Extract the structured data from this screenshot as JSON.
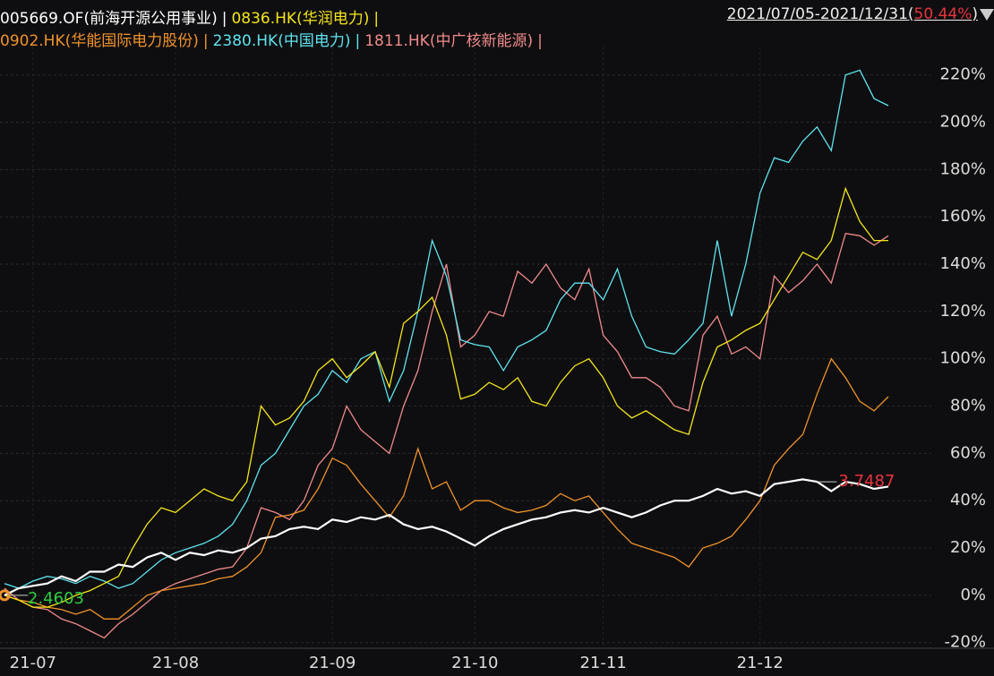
{
  "chart_data": {
    "type": "line",
    "separator": "|",
    "date_range": "2021/07/05-2021/12/31",
    "open_paren": "(",
    "change": "50.44%",
    "close_paren": ")",
    "annotations": [
      {
        "text": "3.7487",
        "color": "#e8343e"
      },
      {
        "text": "2.4603",
        "color": "#2ecc40"
      }
    ],
    "categories": [
      null,
      null,
      "21-07",
      null,
      null,
      null,
      null,
      null,
      null,
      null,
      null,
      null,
      "21-08",
      null,
      null,
      null,
      null,
      null,
      null,
      null,
      null,
      null,
      null,
      "21-09",
      null,
      null,
      null,
      null,
      null,
      null,
      null,
      null,
      null,
      "21-10",
      null,
      null,
      null,
      null,
      null,
      null,
      null,
      null,
      "21-11",
      null,
      null,
      null,
      null,
      null,
      null,
      null,
      null,
      null,
      null,
      "21-12",
      null,
      null,
      null,
      null,
      null,
      null,
      null,
      null,
      null
    ],
    "ylim": [
      -22,
      232
    ],
    "yticks": [
      {
        "value": -20,
        "label": "-20%"
      },
      {
        "value": 0,
        "label": "0%"
      },
      {
        "value": 20,
        "label": "20%"
      },
      {
        "value": 40,
        "label": "40%"
      },
      {
        "value": 60,
        "label": "60%"
      },
      {
        "value": 80,
        "label": "80%"
      },
      {
        "value": 100,
        "label": "100%"
      },
      {
        "value": 120,
        "label": "120%"
      },
      {
        "value": 140,
        "label": "140%"
      },
      {
        "value": 160,
        "label": "160%"
      },
      {
        "value": 180,
        "label": "180%"
      },
      {
        "value": 200,
        "label": "200%"
      },
      {
        "value": 220,
        "label": "220%"
      }
    ],
    "grid": true,
    "series": [
      {
        "name": "005669.OF(前海开源公用事业)",
        "color": "#ffffff",
        "values": [
          0,
          3,
          4,
          5,
          8,
          6,
          10,
          10,
          13,
          12,
          16,
          18,
          15,
          18,
          17,
          19,
          18,
          20,
          24,
          25,
          28,
          29,
          28,
          32,
          31,
          33,
          32,
          34,
          30,
          28,
          29,
          27,
          24,
          21,
          25,
          28,
          30,
          32,
          33,
          35,
          36,
          35,
          37,
          35,
          33,
          35,
          38,
          40,
          40,
          42,
          45,
          43,
          44,
          42,
          47,
          48,
          49,
          48,
          44,
          48,
          47,
          45,
          46
        ]
      },
      {
        "name": "0836.HK(华润电力)",
        "color": "#f5e51b",
        "values": [
          0,
          -2,
          -5,
          -5,
          -3,
          0,
          2,
          5,
          8,
          20,
          30,
          37,
          35,
          40,
          45,
          42,
          40,
          48,
          80,
          72,
          75,
          82,
          95,
          100,
          92,
          97,
          103,
          88,
          115,
          120,
          126,
          110,
          83,
          85,
          90,
          87,
          92,
          82,
          80,
          90,
          97,
          100,
          92,
          80,
          75,
          78,
          74,
          70,
          68,
          90,
          105,
          108,
          112,
          115,
          125,
          135,
          145,
          142,
          150,
          172,
          158,
          150,
          150
        ]
      },
      {
        "name": "0902.HK(华能国际电力股份)",
        "color": "#f0922b",
        "values": [
          0,
          -2,
          -3,
          -5,
          -6,
          -8,
          -6,
          -10,
          -10,
          -5,
          0,
          2,
          3,
          4,
          5,
          7,
          8,
          12,
          18,
          33,
          34,
          36,
          45,
          58,
          55,
          47,
          40,
          33,
          42,
          62,
          45,
          48,
          36,
          40,
          40,
          37,
          35,
          36,
          38,
          43,
          40,
          42,
          35,
          28,
          22,
          20,
          18,
          16,
          12,
          20,
          22,
          25,
          32,
          40,
          55,
          62,
          68,
          85,
          100,
          92,
          82,
          78,
          84
        ]
      },
      {
        "name": "2380.HK(中国电力)",
        "color": "#5fe3ee",
        "values": [
          5,
          3,
          6,
          8,
          7,
          5,
          8,
          6,
          3,
          5,
          10,
          15,
          18,
          20,
          22,
          25,
          30,
          40,
          55,
          60,
          70,
          80,
          85,
          95,
          90,
          100,
          103,
          82,
          95,
          120,
          150,
          135,
          108,
          106,
          105,
          95,
          105,
          108,
          112,
          125,
          132,
          132,
          125,
          138,
          118,
          105,
          103,
          102,
          108,
          115,
          150,
          118,
          140,
          170,
          185,
          183,
          192,
          198,
          188,
          220,
          222,
          210,
          207
        ]
      },
      {
        "name": "1811.HK(中广核新能源)",
        "color": "#f08a8a",
        "values": [
          3,
          -2,
          -5,
          -6,
          -10,
          -12,
          -15,
          -18,
          -12,
          -8,
          -3,
          2,
          5,
          7,
          9,
          11,
          12,
          20,
          37,
          35,
          32,
          40,
          55,
          62,
          80,
          70,
          65,
          60,
          80,
          95,
          120,
          140,
          105,
          110,
          120,
          118,
          137,
          132,
          140,
          130,
          125,
          138,
          110,
          103,
          92,
          92,
          88,
          80,
          78,
          110,
          118,
          102,
          105,
          100,
          135,
          128,
          133,
          140,
          132,
          153,
          152,
          148,
          152
        ]
      }
    ]
  }
}
